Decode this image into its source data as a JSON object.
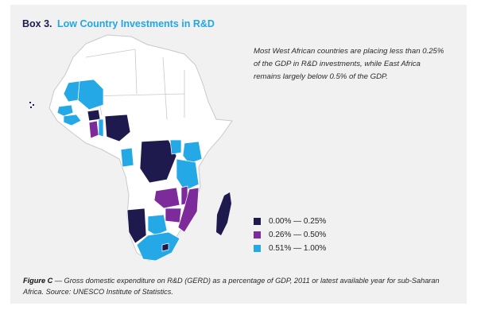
{
  "box": {
    "label": "Box 3.",
    "title": "Low Country Investments in R&D"
  },
  "intro_text": "Most West African countries are placing less than 0.25% of the GDP in R&D investments, while East Africa remains largely below 0.5% of the GDP.",
  "colors": {
    "background": "#f1f1f2",
    "land": "#ffffff",
    "border": "#c9c9cc",
    "bin_low": "#1f1a4d",
    "bin_mid": "#7d2a9a",
    "bin_high": "#24a9e6",
    "title_blue": "#22a7e5"
  },
  "legend": [
    {
      "label": "0.00% — 0.25%",
      "color": "#1f1a4d"
    },
    {
      "label": "0.26% — 0.50%",
      "color": "#7d2a9a"
    },
    {
      "label": "0.51% — 1.00%",
      "color": "#24a9e6"
    }
  ],
  "caption": {
    "figure": "Figure C",
    "text": " — Gross domestic expenditure on R&D (GERD) as a percentage of GDP, 2011 or latest available year for sub-Saharan Africa. Source: UNESCO Institute of Statistics."
  }
}
